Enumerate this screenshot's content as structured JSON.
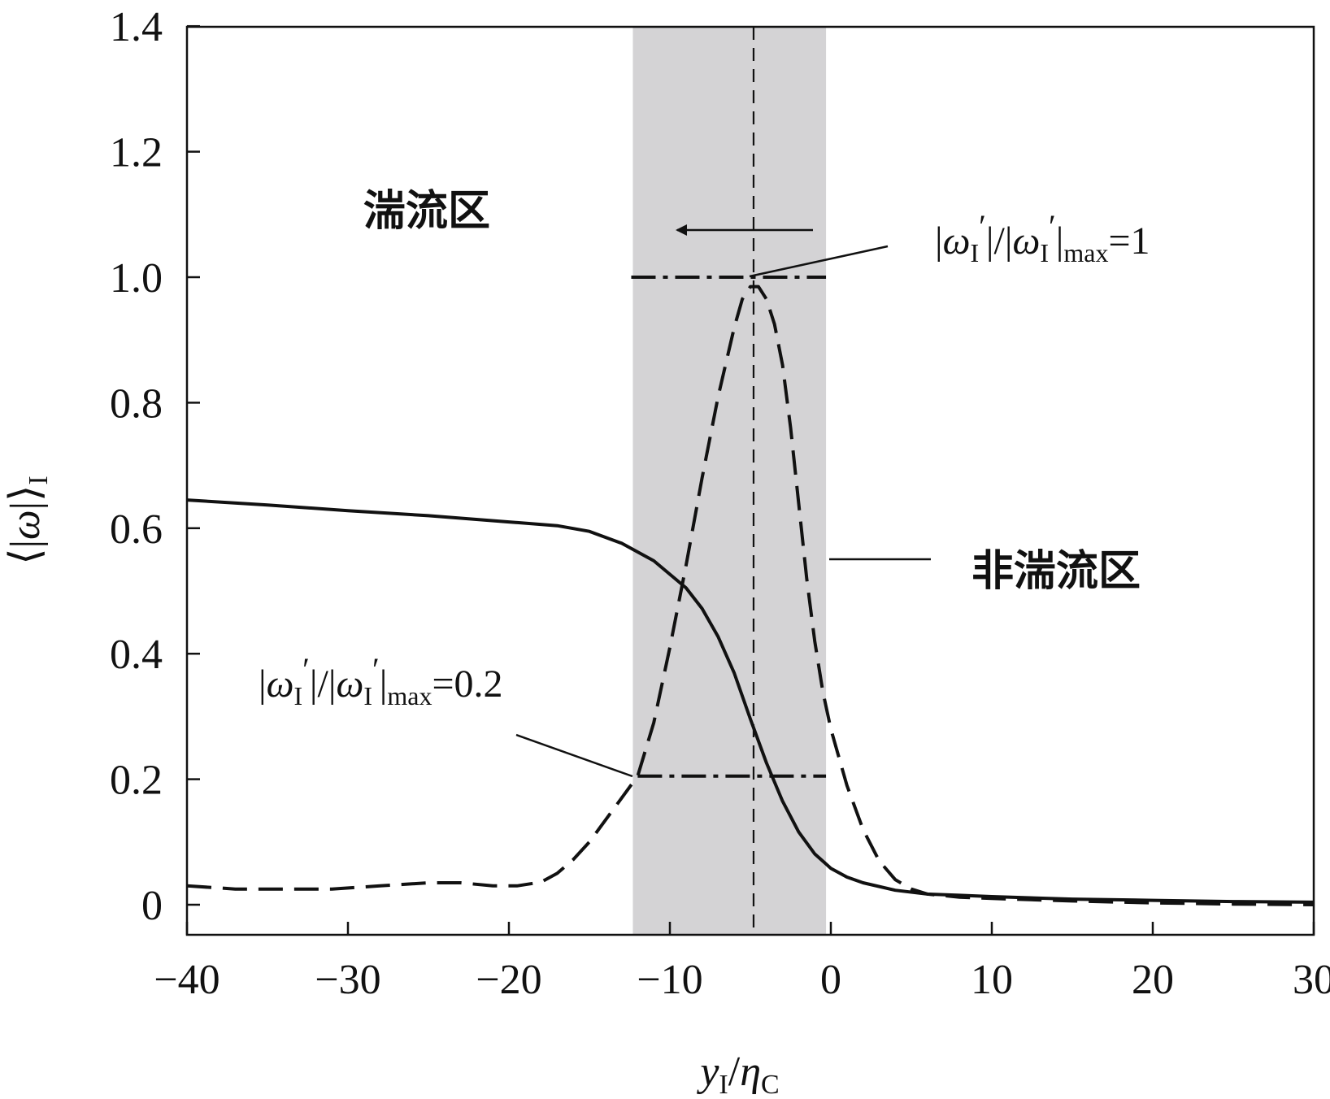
{
  "chart_data": {
    "type": "line",
    "xlabel": "yI/ηC",
    "ylabel": "⟨|ω|⟩I",
    "xlim": [
      -40,
      30
    ],
    "ylim": [
      -0.04,
      1.4
    ],
    "x_ticks": [
      {
        "value": -40,
        "label": "−40"
      },
      {
        "value": -30,
        "label": "−30"
      },
      {
        "value": -20,
        "label": "−20"
      },
      {
        "value": -10,
        "label": "−10"
      },
      {
        "value": 0,
        "label": "0"
      },
      {
        "value": 10,
        "label": "10"
      },
      {
        "value": 20,
        "label": "20"
      },
      {
        "value": 30,
        "label": "30"
      }
    ],
    "y_ticks": [
      {
        "value": 0,
        "label": "0"
      },
      {
        "value": 0.2,
        "label": "0.2"
      },
      {
        "value": 0.4,
        "label": "0.4"
      },
      {
        "value": 0.6,
        "label": "0.6"
      },
      {
        "value": 0.8,
        "label": "0.8"
      },
      {
        "value": 1.0,
        "label": "1.0"
      },
      {
        "value": 1.2,
        "label": "1.2"
      },
      {
        "value": 1.4,
        "label": "1.4"
      }
    ],
    "shaded_band": {
      "x": [
        -12.3,
        -0.3
      ],
      "color": "#d4d3d5"
    },
    "vline_x": -4.8,
    "series": [
      {
        "name": "",
        "style": "solid",
        "x": [
          -40,
          -35,
          -30,
          -25,
          -20,
          -17,
          -15,
          -13,
          -11,
          -9,
          -8,
          -7,
          -6,
          -5,
          -4,
          -3,
          -2,
          -1,
          0,
          1,
          2,
          4,
          6,
          8,
          10,
          15,
          20,
          25,
          30
        ],
        "y": [
          0.645,
          0.637,
          0.628,
          0.62,
          0.61,
          0.604,
          0.595,
          0.576,
          0.548,
          0.505,
          0.472,
          0.427,
          0.369,
          0.296,
          0.226,
          0.165,
          0.116,
          0.081,
          0.058,
          0.044,
          0.035,
          0.023,
          0.017,
          0.015,
          0.013,
          0.009,
          0.007,
          0.005,
          0.004
        ]
      },
      {
        "name": "",
        "style": "dashed",
        "x": [
          -40,
          -37,
          -34,
          -31,
          -28,
          -25,
          -23,
          -21,
          -19.5,
          -18,
          -17,
          -16,
          -15,
          -14,
          -13,
          -12,
          -11,
          -10,
          -9,
          -8,
          -7,
          -6,
          -5.5,
          -5,
          -4.5,
          -4,
          -3.5,
          -3,
          -2.5,
          -2,
          -1.5,
          -1,
          -0.5,
          0,
          1,
          2,
          3,
          4,
          5,
          6,
          8,
          10,
          15,
          20,
          25,
          30
        ],
        "y": [
          0.03,
          0.025,
          0.025,
          0.025,
          0.03,
          0.035,
          0.035,
          0.03,
          0.03,
          0.036,
          0.05,
          0.072,
          0.1,
          0.135,
          0.17,
          0.205,
          0.29,
          0.41,
          0.54,
          0.68,
          0.81,
          0.92,
          0.965,
          0.985,
          0.985,
          0.965,
          0.925,
          0.86,
          0.76,
          0.64,
          0.52,
          0.42,
          0.34,
          0.28,
          0.19,
          0.12,
          0.07,
          0.04,
          0.025,
          0.017,
          0.012,
          0.01,
          0.006,
          0.003,
          0.001,
          0.0
        ]
      }
    ],
    "reference_lines": [
      {
        "x": [
          -12.4,
          -0.3
        ],
        "y": 1.0,
        "style": "dash-dot"
      },
      {
        "x": [
          -12.0,
          -0.3
        ],
        "y": 0.205,
        "style": "dash-dot"
      }
    ],
    "annotations": {
      "turbulent_region": "湍流区",
      "non_turbulent_region": "非湍流区",
      "label_max": "|ωI′|/|ωI′|max=1",
      "label_02": "|ωI′|/|ωI′|max=0.2"
    }
  }
}
